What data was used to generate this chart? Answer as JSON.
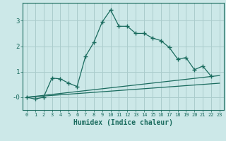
{
  "xlabel": "Humidex (Indice chaleur)",
  "bg_color": "#cce8e8",
  "grid_color": "#aacccc",
  "line_color": "#1a6b5e",
  "xlim": [
    -0.5,
    23.5
  ],
  "ylim": [
    -0.5,
    3.7
  ],
  "yticks": [
    0,
    1,
    2,
    3
  ],
  "ytick_labels": [
    "-0",
    "1",
    "2",
    "3"
  ],
  "xticks": [
    0,
    1,
    2,
    3,
    4,
    5,
    6,
    7,
    8,
    9,
    10,
    11,
    12,
    13,
    14,
    15,
    16,
    17,
    18,
    19,
    20,
    21,
    22,
    23
  ],
  "main_x": [
    0,
    1,
    2,
    3,
    4,
    5,
    6,
    7,
    8,
    9,
    10,
    11,
    12,
    13,
    14,
    15,
    16,
    17,
    18,
    19,
    20,
    21,
    22
  ],
  "main_y": [
    0.0,
    -0.07,
    0.0,
    0.75,
    0.72,
    0.55,
    0.42,
    1.6,
    2.15,
    2.95,
    3.42,
    2.78,
    2.78,
    2.5,
    2.5,
    2.32,
    2.22,
    1.95,
    1.5,
    1.55,
    1.08,
    1.22,
    0.82
  ],
  "line2_x": [
    0,
    23
  ],
  "line2_y": [
    0.0,
    0.85
  ],
  "line3_x": [
    0,
    23
  ],
  "line3_y": [
    0.0,
    0.55
  ]
}
